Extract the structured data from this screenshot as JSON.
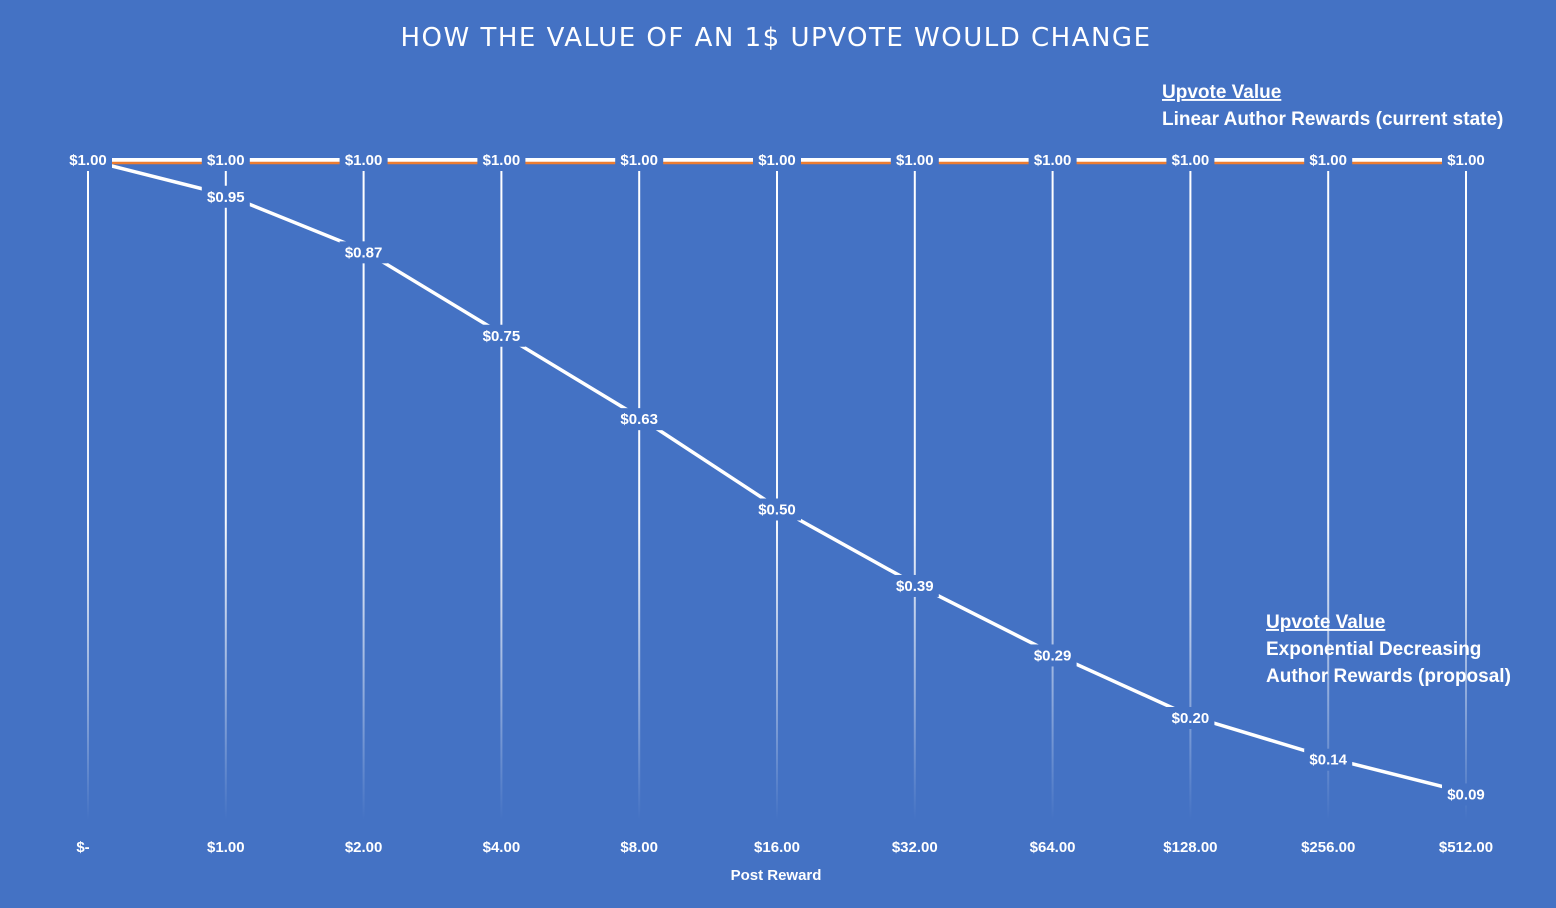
{
  "chart_data": {
    "type": "line",
    "title": "HOW THE VALUE OF AN 1$ UPVOTE WOULD CHANGE",
    "xlabel": "Post Reward",
    "ylabel": "",
    "categories": [
      "$-",
      "$1.00",
      "$2.00",
      "$4.00",
      "$8.00",
      "$16.00",
      "$32.00",
      "$64.00",
      "$128.00",
      "$256.00",
      "$512.00"
    ],
    "ylim": [
      0,
      1
    ],
    "grid": "vertical",
    "series": [
      {
        "name_head": "Upvote Value",
        "name_lines": [
          "Linear Author Rewards (current state)"
        ],
        "color": "#ffffff",
        "accent_color": "#ed7d31",
        "values": [
          1.0,
          1.0,
          1.0,
          1.0,
          1.0,
          1.0,
          1.0,
          1.0,
          1.0,
          1.0,
          1.0
        ],
        "labels": [
          "$1.00",
          "$1.00",
          "$1.00",
          "$1.00",
          "$1.00",
          "$1.00",
          "$1.00",
          "$1.00",
          "$1.00",
          "$1.00",
          "$1.00"
        ]
      },
      {
        "name_head": "Upvote Value",
        "name_lines": [
          "Exponential Decreasing",
          "Author Rewards (proposal)"
        ],
        "color": "#ffffff",
        "values": [
          1.0,
          0.95,
          0.87,
          0.75,
          0.63,
          0.5,
          0.39,
          0.29,
          0.2,
          0.14,
          0.09
        ],
        "labels": [
          "$1.00",
          "$0.95",
          "$0.87",
          "$0.75",
          "$0.63",
          "$0.50",
          "$0.39",
          "$0.29",
          "$0.20",
          "$0.14",
          "$0.09"
        ]
      }
    ],
    "colors": {
      "background": "#4472c4",
      "text": "#ffffff",
      "gridline": "#ffffff"
    }
  }
}
